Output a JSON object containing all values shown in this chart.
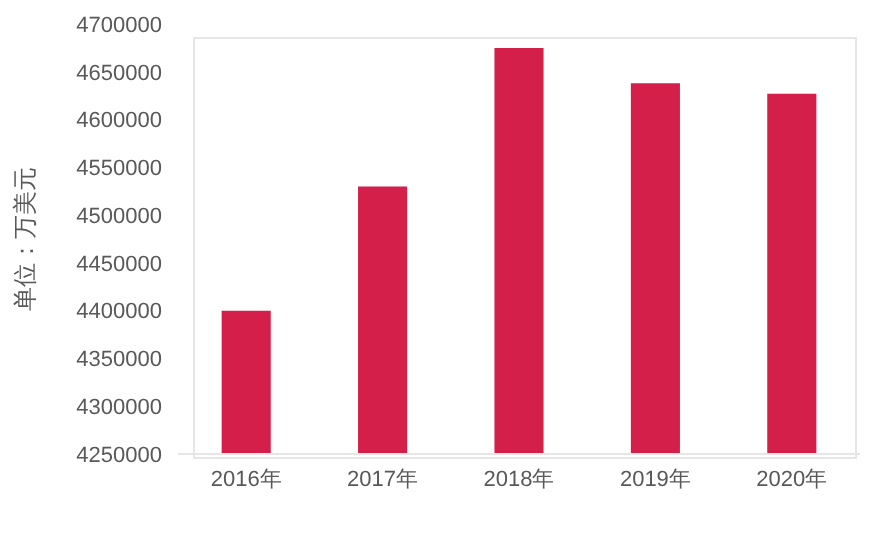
{
  "chart_data": {
    "type": "bar",
    "ylabel": "单位：万美元",
    "categories": [
      "2016年",
      "2017年",
      "2018年",
      "2019年",
      "2020年"
    ],
    "values": [
      4400000,
      4530000,
      4675000,
      4638000,
      4627000
    ],
    "color": "#d41f4a",
    "ylim": [
      4250000,
      4700000
    ],
    "yticks": [
      4250000,
      4300000,
      4350000,
      4400000,
      4450000,
      4500000,
      4550000,
      4600000,
      4650000,
      4700000
    ],
    "grid": false,
    "legend": false
  }
}
